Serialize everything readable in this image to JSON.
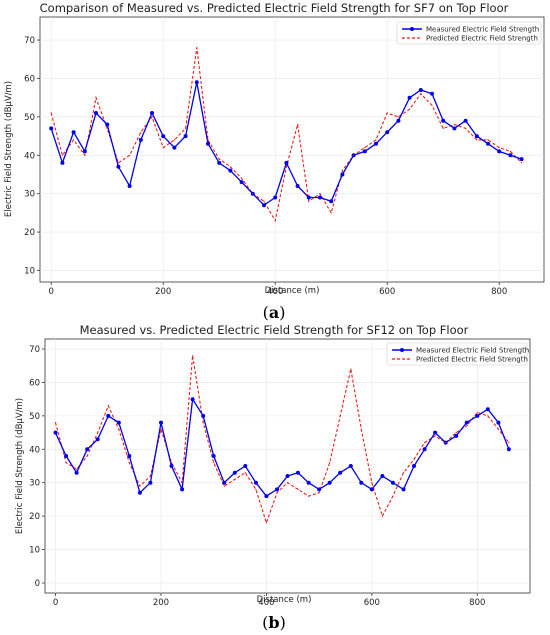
{
  "panel_a": {
    "caption_open": "(",
    "caption_letter": "a",
    "caption_close": ")"
  },
  "panel_b": {
    "caption_open": "(",
    "caption_letter": "b",
    "caption_close": ")"
  },
  "colors": {
    "measured": "#0000ee",
    "predicted": "#ee1c1c",
    "grid": "#e6e6e6",
    "axis": "#333333"
  },
  "chart_data": [
    {
      "type": "line",
      "title": "Comparison of Measured vs. Predicted Electric Field Strength for SF7 on Top Floor",
      "xlabel": "Distance (m)",
      "ylabel": "Electric Field Strength (dBμV/m)",
      "xlim": [
        -20,
        880
      ],
      "ylim": [
        7,
        76
      ],
      "xticks": [
        0,
        200,
        400,
        600,
        800
      ],
      "yticks": [
        10,
        20,
        30,
        40,
        50,
        60,
        70
      ],
      "grid": true,
      "legend_position": "top-right",
      "series": [
        {
          "name": "Measured Electric Field Strength",
          "style": "solid line with circle markers",
          "x": [
            0,
            20,
            40,
            60,
            80,
            100,
            120,
            140,
            160,
            180,
            200,
            220,
            240,
            260,
            280,
            300,
            320,
            340,
            360,
            380,
            400,
            420,
            440,
            460,
            480,
            500,
            520,
            540,
            560,
            580,
            600,
            620,
            640,
            660,
            680,
            700,
            720,
            740,
            760,
            780,
            800,
            820,
            840
          ],
          "y": [
            47,
            38,
            46,
            41,
            51,
            48,
            37,
            32,
            44,
            51,
            45,
            42,
            45,
            59,
            43,
            38,
            36,
            33,
            30,
            27,
            29,
            38,
            32,
            29,
            29,
            28,
            35,
            40,
            41,
            43,
            46,
            49,
            55,
            57,
            56,
            49,
            47,
            49,
            45,
            43,
            41,
            40,
            39
          ]
        },
        {
          "name": "Predicted Electric Field Strength",
          "style": "dashed line",
          "x": [
            0,
            20,
            40,
            60,
            80,
            100,
            120,
            140,
            160,
            180,
            200,
            220,
            240,
            260,
            280,
            300,
            320,
            340,
            360,
            380,
            400,
            420,
            440,
            460,
            480,
            500,
            520,
            540,
            560,
            580,
            600,
            620,
            640,
            660,
            680,
            700,
            720,
            740,
            760,
            780,
            800,
            820,
            840
          ],
          "y": [
            51,
            40,
            44,
            40,
            55,
            47,
            38,
            40,
            46,
            50,
            42,
            44,
            47,
            68,
            44,
            39,
            37,
            34,
            30,
            28,
            23,
            37,
            48,
            28,
            30,
            25,
            36,
            40,
            42,
            44,
            51,
            50,
            52,
            56,
            53,
            47,
            48,
            47,
            44,
            44,
            42,
            41,
            38
          ]
        }
      ]
    },
    {
      "type": "line",
      "title": "Measured vs. Predicted Electric Field Strength for SF12 on Top Floor",
      "xlabel": "Distance (m)",
      "ylabel": "Electric Field Strength (dBμV/m)",
      "xlim": [
        -20,
        900
      ],
      "ylim": [
        -3,
        73
      ],
      "xticks": [
        0,
        200,
        400,
        600,
        800
      ],
      "yticks": [
        0,
        10,
        20,
        30,
        40,
        50,
        60,
        70
      ],
      "grid": true,
      "legend_position": "top-right",
      "series": [
        {
          "name": "Measured Electric Field Strength",
          "style": "solid line with circle markers",
          "x": [
            0,
            20,
            40,
            60,
            80,
            100,
            120,
            140,
            160,
            180,
            200,
            220,
            240,
            260,
            280,
            300,
            320,
            340,
            360,
            380,
            400,
            420,
            440,
            460,
            480,
            500,
            520,
            540,
            560,
            580,
            600,
            620,
            640,
            660,
            680,
            700,
            720,
            740,
            760,
            780,
            800,
            820,
            840,
            860
          ],
          "y": [
            45,
            38,
            33,
            40,
            43,
            50,
            48,
            38,
            27,
            30,
            48,
            35,
            28,
            55,
            50,
            38,
            30,
            33,
            35,
            30,
            26,
            28,
            32,
            33,
            30,
            28,
            30,
            33,
            35,
            30,
            28,
            32,
            30,
            28,
            35,
            40,
            45,
            42,
            44,
            48,
            50,
            52,
            48,
            40
          ]
        },
        {
          "name": "Predicted Electric Field Strength",
          "style": "dashed line",
          "x": [
            0,
            20,
            40,
            60,
            80,
            100,
            120,
            140,
            160,
            180,
            200,
            220,
            240,
            260,
            280,
            300,
            320,
            340,
            360,
            380,
            400,
            420,
            440,
            460,
            480,
            500,
            520,
            540,
            560,
            580,
            600,
            620,
            640,
            660,
            680,
            700,
            720,
            740,
            760,
            780,
            800,
            820,
            840,
            860
          ],
          "y": [
            48,
            36,
            34,
            38,
            45,
            53,
            46,
            36,
            29,
            32,
            46,
            36,
            30,
            68,
            48,
            36,
            29,
            31,
            33,
            28,
            18,
            27,
            30,
            28,
            26,
            27,
            36,
            50,
            64,
            46,
            30,
            20,
            26,
            33,
            37,
            42,
            44,
            42,
            45,
            47,
            51,
            50,
            46,
            42
          ]
        }
      ]
    }
  ]
}
